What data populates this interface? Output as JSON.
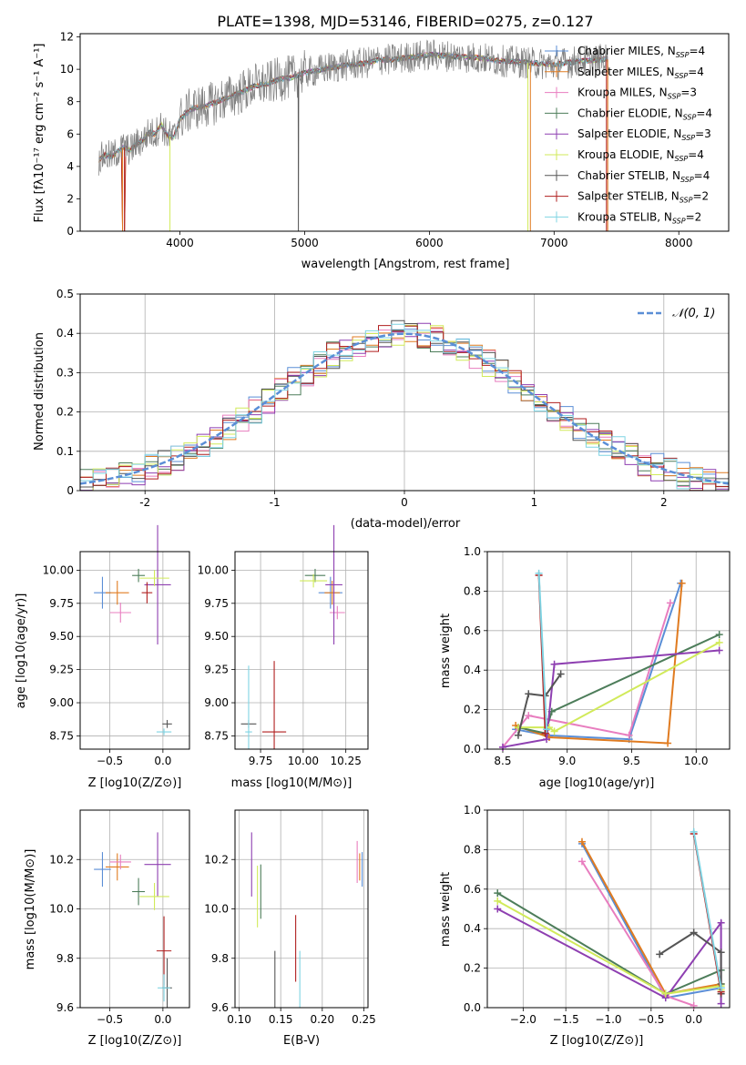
{
  "colors": [
    "#5a8ed6",
    "#e07b20",
    "#e87dbf",
    "#4d7d5a",
    "#8e3fb1",
    "#d1ea5a",
    "#555555",
    "#b01f1f",
    "#7fd4e3"
  ],
  "chart_data": [
    {
      "type": "line",
      "title": "PLATE=1398, MJD=53146, FIBERID=0275, z=0.127",
      "xlabel": "wavelength [Angstrom, rest frame]",
      "ylabel": "Flux [fλ10⁻¹⁷ erg cm⁻² s⁻¹ A⁻¹]",
      "xlim": [
        3200,
        8400
      ],
      "ylim": [
        0,
        12.2
      ],
      "xticks": [
        4000,
        5000,
        6000,
        7000,
        8000
      ],
      "yticks": [
        0,
        2,
        4,
        6,
        8,
        10,
        12
      ],
      "grid": false,
      "legend_position": "right",
      "data_series": {
        "name": "",
        "color": "#808080",
        "x": [
          3350,
          3400,
          3450,
          3500,
          3550,
          3600,
          3650,
          3700,
          3750,
          3800,
          3850,
          3900,
          3950,
          4000,
          4100,
          4200,
          4300,
          4400,
          4500,
          4600,
          4700,
          4800,
          4900,
          5000,
          5100,
          5200,
          5300,
          5400,
          5500,
          5600,
          5700,
          5800,
          5900,
          6000,
          6200,
          6400,
          6600,
          6800,
          7000,
          7200,
          7400
        ],
        "y": [
          4.4,
          4.7,
          4.6,
          4.9,
          5.2,
          5.0,
          5.4,
          5.6,
          6.1,
          6.0,
          6.6,
          5.9,
          5.8,
          6.9,
          7.6,
          7.7,
          8.0,
          8.3,
          8.6,
          9.0,
          9.1,
          9.4,
          9.5,
          9.8,
          9.9,
          10.1,
          10.2,
          10.3,
          10.4,
          10.6,
          10.6,
          10.7,
          10.8,
          10.9,
          10.8,
          10.7,
          10.5,
          10.4,
          10.3,
          10.5,
          10.6
        ]
      },
      "series": [
        {
          "name": "Chabrier MILES, N",
          "sub": "SSP",
          "n": "=4"
        },
        {
          "name": "Salpeter MILES, N",
          "sub": "SSP",
          "n": "=4"
        },
        {
          "name": "Kroupa MILES, N",
          "sub": "SSP",
          "n": "=3"
        },
        {
          "name": "Chabrier ELODIE, N",
          "sub": "SSP",
          "n": "=4"
        },
        {
          "name": "Salpeter ELODIE, N",
          "sub": "SSP",
          "n": "=3"
        },
        {
          "name": "Kroupa ELODIE, N",
          "sub": "SSP",
          "n": "=4"
        },
        {
          "name": "Chabrier STELIB, N",
          "sub": "SSP",
          "n": "=4"
        },
        {
          "name": "Salpeter STELIB, N",
          "sub": "SSP",
          "n": "=2"
        },
        {
          "name": "Kroupa STELIB, N",
          "sub": "SSP",
          "n": "=2"
        }
      ]
    },
    {
      "type": "line",
      "xlabel": "(data-model)/error",
      "ylabel": "Normed distribution",
      "xlim": [
        -2.5,
        2.5
      ],
      "ylim": [
        0,
        0.5
      ],
      "xticks": [
        -2,
        -1,
        0,
        1,
        2
      ],
      "yticks": [
        0.0,
        0.1,
        0.2,
        0.3,
        0.4,
        0.5
      ],
      "grid": true,
      "legend": "𝒩(0, 1)",
      "legend_position": "top-right",
      "histogram_bin_width": 0.1,
      "curve": {
        "name": "𝒩(0, 1)",
        "mean": 0,
        "sigma": 1,
        "color": "#5a8ed6"
      }
    },
    {
      "type": "scatter",
      "xlabel": "Z [log10(Z/Z⊙)]",
      "ylabel": "age  [log10(age/yr)]",
      "xlim": [
        -0.78,
        0.25
      ],
      "ylim": [
        8.65,
        10.14
      ],
      "xticks": [
        -0.5,
        0.0
      ],
      "yticks": [
        8.75,
        9.0,
        9.25,
        9.5,
        9.75,
        10.0
      ],
      "xtick_labels": [
        "−0.5",
        "0.0"
      ],
      "ytick_labels": [
        "8.75",
        "9.00",
        "9.25",
        "9.50",
        "9.75",
        "10.00"
      ],
      "points": [
        {
          "x": -0.57,
          "y": 9.83,
          "xe": 0.16,
          "ye": 0.24
        },
        {
          "x": -0.43,
          "y": 9.83,
          "xe": 0.22,
          "ye": 0.18
        },
        {
          "x": -0.4,
          "y": 9.68,
          "xe": 0.2,
          "ye": 0.15
        },
        {
          "x": -0.23,
          "y": 9.96,
          "xe": 0.12,
          "ye": 0.1
        },
        {
          "x": -0.05,
          "y": 9.89,
          "xe": 0.25,
          "ye": 0.9
        },
        {
          "x": -0.08,
          "y": 9.94,
          "xe": 0.28,
          "ye": 0.12
        },
        {
          "x": 0.04,
          "y": 8.84,
          "xe": 0.09,
          "ye": 0.06
        },
        {
          "x": -0.15,
          "y": 9.83,
          "xe": 0.1,
          "ye": 0.16
        },
        {
          "x": 0.01,
          "y": 8.78,
          "xe": 0.14,
          "ye": 0.05
        }
      ]
    },
    {
      "type": "scatter",
      "xlabel": "mass [log10(M/M⊙)]",
      "xlim": [
        9.6,
        10.38
      ],
      "ylim": [
        8.65,
        10.14
      ],
      "xticks": [
        9.75,
        10.0,
        10.25
      ],
      "yticks": [
        8.75,
        9.0,
        9.25,
        9.5,
        9.75,
        10.0
      ],
      "xtick_labels": [
        "9.75",
        "10.00",
        "10.25"
      ],
      "ytick_labels": [
        "8.75",
        "9.00",
        "9.25",
        "9.50",
        "9.75",
        "10.00"
      ],
      "points": [
        {
          "x": 10.16,
          "y": 9.83,
          "xe": 0.14,
          "ye": 0.24
        },
        {
          "x": 10.17,
          "y": 9.83,
          "xe": 0.09,
          "ye": 0.18
        },
        {
          "x": 10.2,
          "y": 9.68,
          "xe": 0.09,
          "ye": 0.1
        },
        {
          "x": 10.07,
          "y": 9.96,
          "xe": 0.12,
          "ye": 0.1
        },
        {
          "x": 10.18,
          "y": 9.89,
          "xe": 0.1,
          "ye": 0.9
        },
        {
          "x": 10.06,
          "y": 9.92,
          "xe": 0.16,
          "ye": 0.1
        },
        {
          "x": 9.68,
          "y": 8.84,
          "xe": 0.09,
          "ye": 0.06
        },
        {
          "x": 9.83,
          "y": 8.78,
          "xe": 0.14,
          "ye": 1.07
        },
        {
          "x": 9.68,
          "y": 8.78,
          "xe": 0.04,
          "ye": 1.0
        }
      ]
    },
    {
      "type": "line",
      "xlabel": "age  [log10(age/yr)]",
      "ylabel": "mass weight",
      "xlim": [
        8.38,
        10.26
      ],
      "ylim": [
        0,
        1.0
      ],
      "xticks": [
        8.5,
        9.0,
        9.5,
        10.0
      ],
      "yticks": [
        0.0,
        0.2,
        0.4,
        0.6,
        0.8,
        1.0
      ],
      "xtick_labels": [
        "8.5",
        "9.0",
        "9.5",
        "10.0"
      ],
      "ytick_labels": [
        "0.0",
        "0.2",
        "0.4",
        "0.6",
        "0.8",
        "1.0"
      ],
      "grid": true,
      "series": [
        {
          "x": [
            8.6,
            8.84,
            9.48,
            9.88
          ],
          "y": [
            0.1,
            0.07,
            0.05,
            0.84
          ]
        },
        {
          "x": [
            8.6,
            8.86,
            9.78,
            9.89
          ],
          "y": [
            0.12,
            0.06,
            0.03,
            0.84
          ]
        },
        {
          "x": [
            8.5,
            8.7,
            9.48,
            9.8
          ],
          "y": [
            0.01,
            0.17,
            0.07,
            0.74
          ]
        },
        {
          "x": [
            8.62,
            8.83,
            8.88,
            10.18
          ],
          "y": [
            0.11,
            0.08,
            0.19,
            0.58
          ]
        },
        {
          "x": [
            8.5,
            8.84,
            8.9,
            10.18
          ],
          "y": [
            0.01,
            0.05,
            0.43,
            0.5
          ]
        },
        {
          "x": [
            8.62,
            8.86,
            8.9,
            10.18
          ],
          "y": [
            0.11,
            0.11,
            0.09,
            0.54
          ]
        },
        {
          "x": [
            8.62,
            8.7,
            8.83,
            8.95
          ],
          "y": [
            0.07,
            0.28,
            0.27,
            0.38
          ]
        },
        {
          "x": [
            8.78,
            8.83
          ],
          "y": [
            0.88,
            0.08
          ]
        },
        {
          "x": [
            8.78,
            8.84
          ],
          "y": [
            0.89,
            0.1
          ]
        }
      ]
    },
    {
      "type": "scatter",
      "xlabel": "Z [log10(Z/Z⊙)]",
      "ylabel": "mass [log10(M/M⊙)]",
      "xlim": [
        -0.78,
        0.25
      ],
      "ylim": [
        9.6,
        10.4
      ],
      "xticks": [
        -0.5,
        0.0
      ],
      "yticks": [
        9.6,
        9.8,
        10.0,
        10.2
      ],
      "xtick_labels": [
        "−0.5",
        "0.0"
      ],
      "ytick_labels": [
        "9.6",
        "9.8",
        "10.0",
        "10.2"
      ],
      "points": [
        {
          "x": -0.57,
          "y": 10.16,
          "xe": 0.16,
          "ye": 0.14
        },
        {
          "x": -0.43,
          "y": 10.17,
          "xe": 0.22,
          "ye": 0.11
        },
        {
          "x": -0.4,
          "y": 10.19,
          "xe": 0.2,
          "ye": 0.06
        },
        {
          "x": -0.23,
          "y": 10.07,
          "xe": 0.12,
          "ye": 0.11
        },
        {
          "x": -0.05,
          "y": 10.18,
          "xe": 0.25,
          "ye": 0.26
        },
        {
          "x": -0.08,
          "y": 10.05,
          "xe": 0.28,
          "ye": 0.11
        },
        {
          "x": 0.04,
          "y": 9.68,
          "xe": 0.09,
          "ye": 0.24
        },
        {
          "x": 0.01,
          "y": 9.83,
          "xe": 0.14,
          "ye": 0.28
        },
        {
          "x": 0.01,
          "y": 9.68,
          "xe": 0.12,
          "ye": 0.11
        }
      ]
    },
    {
      "type": "scatter",
      "xlabel": "E(B-V)",
      "xlim": [
        0.095,
        0.255
      ],
      "ylim": [
        9.6,
        10.4
      ],
      "xticks": [
        0.1,
        0.15,
        0.2,
        0.25
      ],
      "yticks": [
        9.6,
        9.8,
        10.0,
        10.2
      ],
      "xtick_labels": [
        "0.10",
        "0.15",
        "0.20",
        "0.25"
      ],
      "ytick_labels": [
        "9.6",
        "9.8",
        "10.0",
        "10.2"
      ],
      "points": [
        {
          "x": 0.248,
          "y": 10.16,
          "ye": 0.14
        },
        {
          "x": 0.245,
          "y": 10.17,
          "ye": 0.11
        },
        {
          "x": 0.242,
          "y": 10.19,
          "ye": 0.17
        },
        {
          "x": 0.126,
          "y": 10.07,
          "ye": 0.22
        },
        {
          "x": 0.115,
          "y": 10.18,
          "ye": 0.26
        },
        {
          "x": 0.122,
          "y": 10.05,
          "ye": 0.25
        },
        {
          "x": 0.143,
          "y": 9.68,
          "ye": 0.3
        },
        {
          "x": 0.168,
          "y": 9.84,
          "ye": 0.27
        },
        {
          "x": 0.173,
          "y": 9.68,
          "ye": 0.3
        }
      ]
    },
    {
      "type": "line",
      "xlabel": "Z [log10(Z/Z⊙)]",
      "ylabel": "mass weight",
      "xlim": [
        -2.42,
        0.42
      ],
      "ylim": [
        0,
        1.0
      ],
      "xticks": [
        -2.0,
        -1.5,
        -1.0,
        -0.5,
        0.0
      ],
      "yticks": [
        0.0,
        0.2,
        0.4,
        0.6,
        0.8,
        1.0
      ],
      "xtick_labels": [
        "−2.0",
        "−1.5",
        "−1.0",
        "−0.5",
        "0.0"
      ],
      "ytick_labels": [
        "0.0",
        "0.2",
        "0.4",
        "0.6",
        "0.8",
        "1.0"
      ],
      "grid": true,
      "series": [
        {
          "x": [
            -1.31,
            -0.33,
            0.32
          ],
          "y": [
            0.83,
            0.05,
            0.1
          ]
        },
        {
          "x": [
            -1.31,
            -0.33,
            0.32
          ],
          "y": [
            0.84,
            0.07,
            0.12
          ]
        },
        {
          "x": [
            -1.31,
            -0.33,
            0.0
          ],
          "y": [
            0.74,
            0.06,
            0.01
          ]
        },
        {
          "x": [
            -2.3,
            -0.33,
            0.32,
            0.32
          ],
          "y": [
            0.58,
            0.07,
            0.19,
            0.12
          ]
        },
        {
          "x": [
            -2.3,
            -0.33,
            0.32,
            0.32
          ],
          "y": [
            0.5,
            0.05,
            0.43,
            0.02
          ]
        },
        {
          "x": [
            -2.3,
            -0.33,
            0.32,
            0.32
          ],
          "y": [
            0.54,
            0.07,
            0.11,
            0.09
          ]
        },
        {
          "x": [
            -0.4,
            0.0,
            0.32,
            0.32
          ],
          "y": [
            0.27,
            0.38,
            0.28,
            0.07
          ]
        },
        {
          "x": [
            0.0,
            0.32
          ],
          "y": [
            0.88,
            0.08
          ]
        },
        {
          "x": [
            0.0,
            0.32
          ],
          "y": [
            0.89,
            0.1
          ]
        }
      ]
    }
  ]
}
